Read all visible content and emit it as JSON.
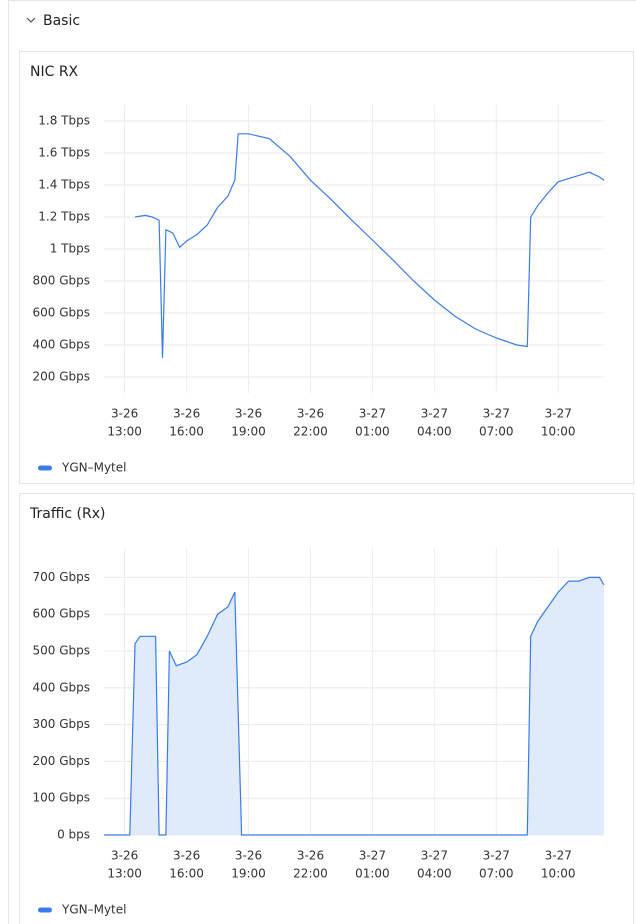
{
  "panel": {
    "title": "Basic"
  },
  "chart_data": [
    {
      "type": "line",
      "title": "NIC RX",
      "color": "#3b7be8",
      "grid": true,
      "series": [
        {
          "name": "YGN–Mytel",
          "color": "#3b7be8",
          "x": [
            "3-26 13:30",
            "3-26 14:00",
            "3-26 14:20",
            "3-26 14:40",
            "3-26 14:50",
            "3-26 15:00",
            "3-26 15:20",
            "3-26 15:40",
            "3-26 16:00",
            "3-26 16:30",
            "3-26 17:00",
            "3-26 17:30",
            "3-26 18:00",
            "3-26 18:20",
            "3-26 18:30",
            "3-26 19:00",
            "3-26 20:00",
            "3-26 21:00",
            "3-26 22:00",
            "3-26 23:00",
            "3-27 00:00",
            "3-27 01:00",
            "3-27 02:00",
            "3-27 03:00",
            "3-27 04:00",
            "3-27 05:00",
            "3-27 06:00",
            "3-27 07:00",
            "3-27 08:00",
            "3-27 08:30",
            "3-27 08:40",
            "3-27 09:00",
            "3-27 09:30",
            "3-27 10:00",
            "3-27 10:30",
            "3-27 11:00",
            "3-27 11:30",
            "3-27 12:00",
            "3-27 12:13"
          ],
          "values": [
            1200,
            1210,
            1200,
            1180,
            320,
            1120,
            1100,
            1010,
            1050,
            1090,
            1150,
            1260,
            1330,
            1430,
            1720,
            1720,
            1690,
            1580,
            1430,
            1310,
            1180,
            1056,
            930,
            800,
            681,
            580,
            500,
            444,
            400,
            390,
            1200,
            1270,
            1350,
            1420,
            1440,
            1460,
            1480,
            1450,
            1430
          ]
        }
      ],
      "xlim": [
        "3-26 12:00",
        "3-27 12:13"
      ],
      "xticks": [
        {
          "value": "3-26 13:00",
          "label": [
            "3-26",
            "13:00"
          ]
        },
        {
          "value": "3-26 16:00",
          "label": [
            "3-26",
            "16:00"
          ]
        },
        {
          "value": "3-26 19:00",
          "label": [
            "3-26",
            "19:00"
          ]
        },
        {
          "value": "3-26 22:00",
          "label": [
            "3-26",
            "22:00"
          ]
        },
        {
          "value": "3-27 01:00",
          "label": [
            "3-27",
            "01:00"
          ]
        },
        {
          "value": "3-27 04:00",
          "label": [
            "3-27",
            "04:00"
          ]
        },
        {
          "value": "3-27 07:00",
          "label": [
            "3-27",
            "07:00"
          ]
        },
        {
          "value": "3-27 10:00",
          "label": [
            "3-27",
            "10:00"
          ]
        }
      ],
      "ylim": [
        100,
        1900
      ],
      "yticks": [
        {
          "value": 200,
          "label": "200 Gbps"
        },
        {
          "value": 400,
          "label": "400 Gbps"
        },
        {
          "value": 600,
          "label": "600 Gbps"
        },
        {
          "value": 800,
          "label": "800 Gbps"
        },
        {
          "value": 1000,
          "label": "1 Tbps"
        },
        {
          "value": 1200,
          "label": "1.2 Tbps"
        },
        {
          "value": 1400,
          "label": "1.4 Tbps"
        },
        {
          "value": 1600,
          "label": "1.6 Tbps"
        },
        {
          "value": 1800,
          "label": "1.8 Tbps"
        }
      ]
    },
    {
      "type": "area",
      "title": "Traffic (Rx)",
      "color": "#3b7be8",
      "fill": "#dfeafb",
      "grid": true,
      "series": [
        {
          "name": "YGN–Mytel",
          "color": "#3b7be8",
          "x": [
            "3-26 12:00",
            "3-26 13:15",
            "3-26 13:30",
            "3-26 13:45",
            "3-26 14:30",
            "3-26 14:40",
            "3-26 15:00",
            "3-26 15:10",
            "3-26 15:30",
            "3-26 16:00",
            "3-26 16:30",
            "3-26 17:00",
            "3-26 17:30",
            "3-26 18:00",
            "3-26 18:20",
            "3-26 18:40",
            "3-27 08:30",
            "3-27 08:40",
            "3-27 09:00",
            "3-27 09:30",
            "3-27 10:00",
            "3-27 10:30",
            "3-27 11:00",
            "3-27 11:30",
            "3-27 12:00",
            "3-27 12:13"
          ],
          "values": [
            0,
            0,
            520,
            540,
            540,
            0,
            0,
            500,
            460,
            470,
            490,
            540,
            600,
            620,
            660,
            0,
            0,
            540,
            580,
            620,
            660,
            690,
            690,
            700,
            700,
            680
          ]
        }
      ],
      "xlim": [
        "3-26 12:00",
        "3-27 12:13"
      ],
      "xticks": [
        {
          "value": "3-26 13:00",
          "label": [
            "3-26",
            "13:00"
          ]
        },
        {
          "value": "3-26 16:00",
          "label": [
            "3-26",
            "16:00"
          ]
        },
        {
          "value": "3-26 19:00",
          "label": [
            "3-26",
            "19:00"
          ]
        },
        {
          "value": "3-26 22:00",
          "label": [
            "3-26",
            "22:00"
          ]
        },
        {
          "value": "3-27 01:00",
          "label": [
            "3-27",
            "01:00"
          ]
        },
        {
          "value": "3-27 04:00",
          "label": [
            "3-27",
            "04:00"
          ]
        },
        {
          "value": "3-27 07:00",
          "label": [
            "3-27",
            "07:00"
          ]
        },
        {
          "value": "3-27 10:00",
          "label": [
            "3-27",
            "10:00"
          ]
        }
      ],
      "ylim": [
        0,
        780
      ],
      "yticks": [
        {
          "value": 0,
          "label": "0 bps"
        },
        {
          "value": 100,
          "label": "100 Gbps"
        },
        {
          "value": 200,
          "label": "200 Gbps"
        },
        {
          "value": 300,
          "label": "300 Gbps"
        },
        {
          "value": 400,
          "label": "400 Gbps"
        },
        {
          "value": 500,
          "label": "500 Gbps"
        },
        {
          "value": 600,
          "label": "600 Gbps"
        },
        {
          "value": 700,
          "label": "700 Gbps"
        }
      ]
    }
  ]
}
